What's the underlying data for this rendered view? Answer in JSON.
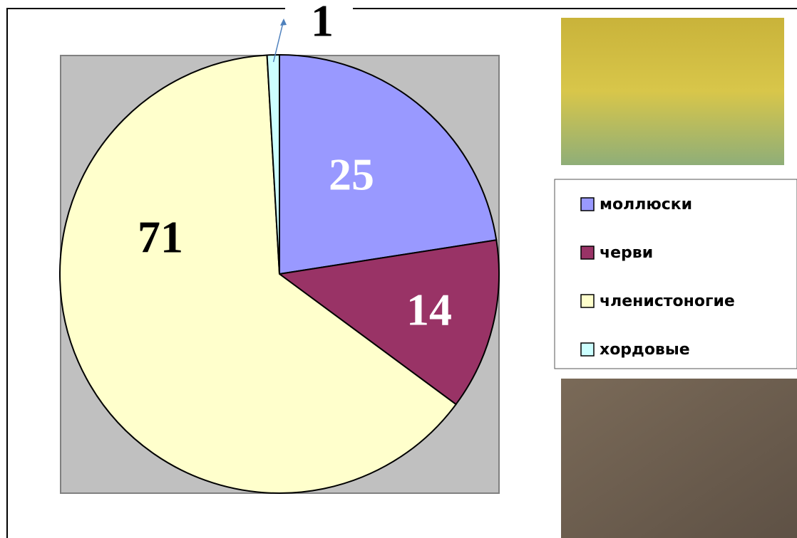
{
  "chart_data": {
    "type": "pie",
    "categories": [
      "моллюски",
      "черви",
      "членистоногие",
      "хордовые"
    ],
    "values": [
      25,
      14,
      71,
      1
    ],
    "colors": [
      "#9999ff",
      "#993366",
      "#ffffcc",
      "#ccffff"
    ],
    "legend": "right"
  }
}
